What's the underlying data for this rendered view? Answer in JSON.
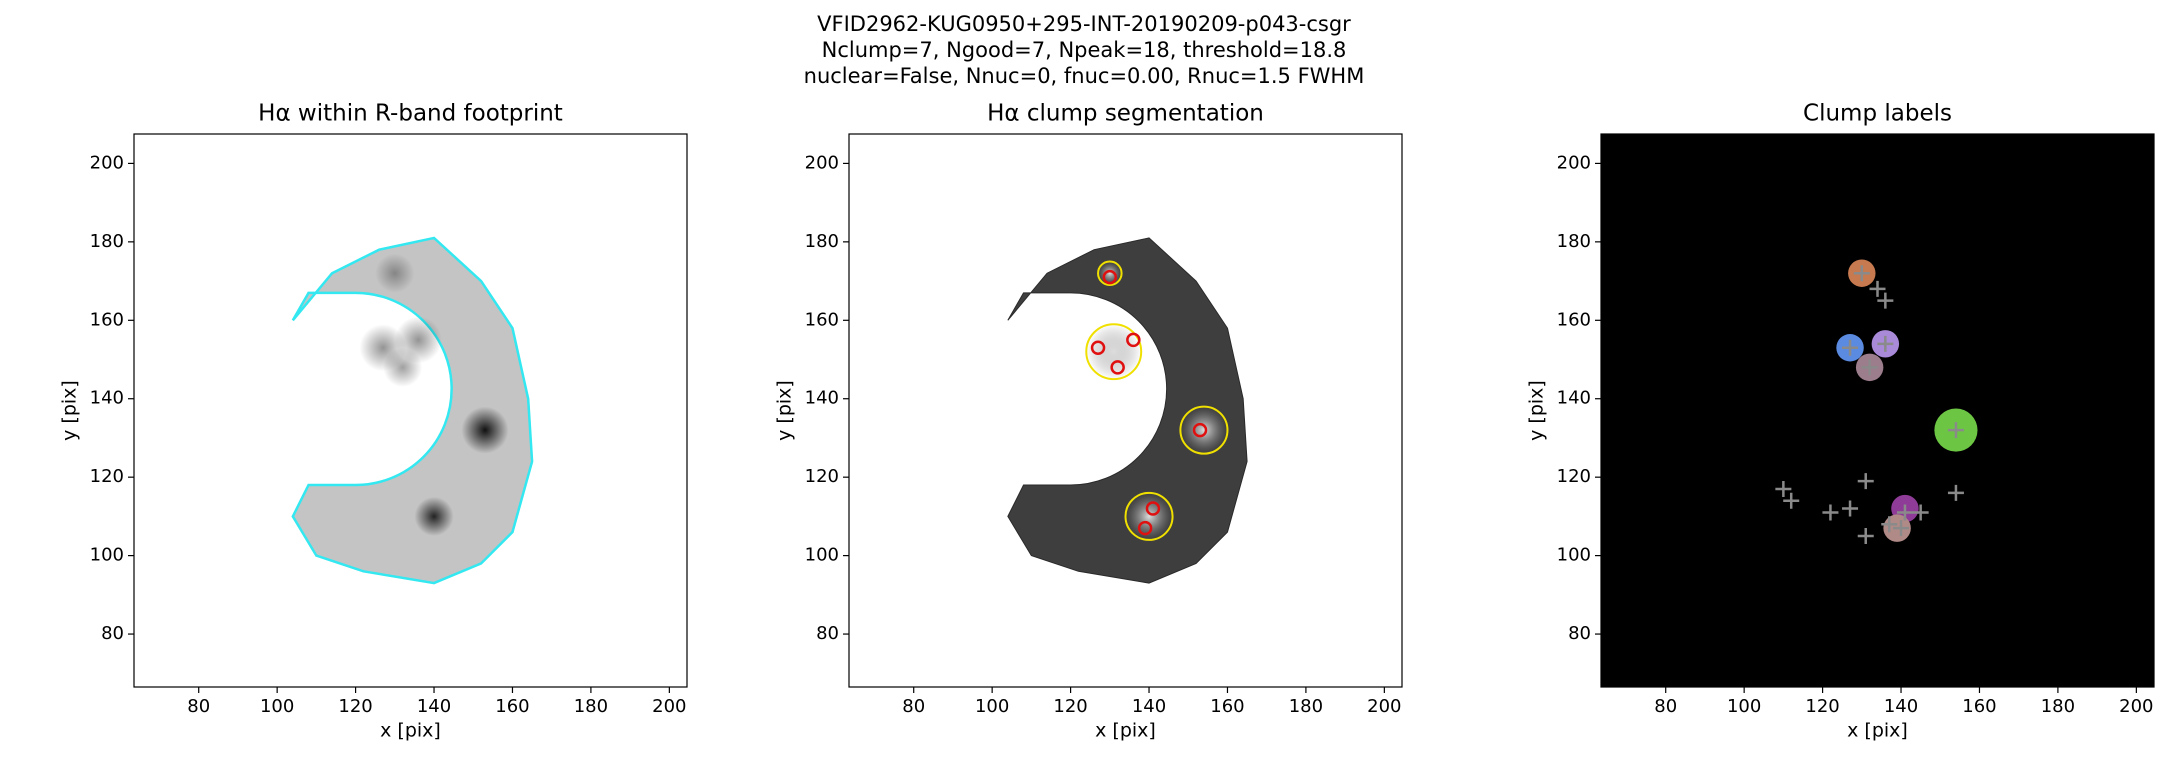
{
  "figure_title": [
    "VFID2962-KUG0950+295-INT-20190209-p043-csgr",
    "Nclump=7, Ngood=7, Npeak=18, threshold=18.8",
    "nuclear=False, Nnuc=0, fnuc=0.00, Rnuc=1.5 FWHM"
  ],
  "chart_data": [
    {
      "type": "image",
      "title": "Hα within R-band footprint",
      "xlabel": "x [pix]",
      "ylabel": "y [pix]",
      "xlim": [
        63.5,
        204.5
      ],
      "ylim": [
        66.5,
        207.5
      ],
      "xticks": [
        80,
        100,
        120,
        140,
        160,
        180,
        200
      ],
      "yticks": [
        80,
        100,
        120,
        140,
        160,
        180,
        200
      ]
    },
    {
      "type": "segmentation",
      "title": "Hα clump segmentation",
      "xlabel": "x [pix]",
      "ylabel": "y [pix]",
      "xlim": [
        63.5,
        204.5
      ],
      "ylim": [
        66.5,
        207.5
      ],
      "xticks": [
        80,
        100,
        120,
        140,
        160,
        180,
        200
      ],
      "yticks": [
        80,
        100,
        120,
        140,
        160,
        180,
        200
      ],
      "clumps": {
        "x": [
          130,
          127,
          136,
          132,
          153,
          141,
          139
        ],
        "y": [
          171,
          153,
          155,
          148,
          132,
          112,
          107
        ]
      }
    },
    {
      "type": "labels",
      "title": "Clump labels",
      "xlabel": "x [pix]",
      "ylabel": "y [pix]",
      "xlim": [
        63.5,
        204.5
      ],
      "ylim": [
        66.5,
        207.5
      ],
      "xticks": [
        80,
        100,
        120,
        140,
        160,
        180,
        200
      ],
      "yticks": [
        80,
        100,
        120,
        140,
        160,
        180,
        200
      ],
      "clumps": {
        "x": [
          130,
          127,
          136,
          132,
          154,
          141,
          139
        ],
        "y": [
          172,
          153,
          154,
          148,
          132,
          112,
          107
        ],
        "colors": [
          "#c77a4f",
          "#5b8be0",
          "#a98ad9",
          "#9c7d8c",
          "#6cc644",
          "#8e3c97",
          "#b08a86"
        ]
      },
      "peaks": {
        "x": [
          130,
          134,
          136,
          127,
          136,
          132,
          154,
          141,
          140,
          110,
          112,
          122,
          127,
          131,
          131,
          145,
          154,
          137
        ],
        "y": [
          172,
          168,
          165,
          153,
          154,
          148,
          132,
          111,
          107,
          117,
          114,
          111,
          112,
          119,
          105,
          111,
          116,
          108
        ]
      }
    }
  ]
}
